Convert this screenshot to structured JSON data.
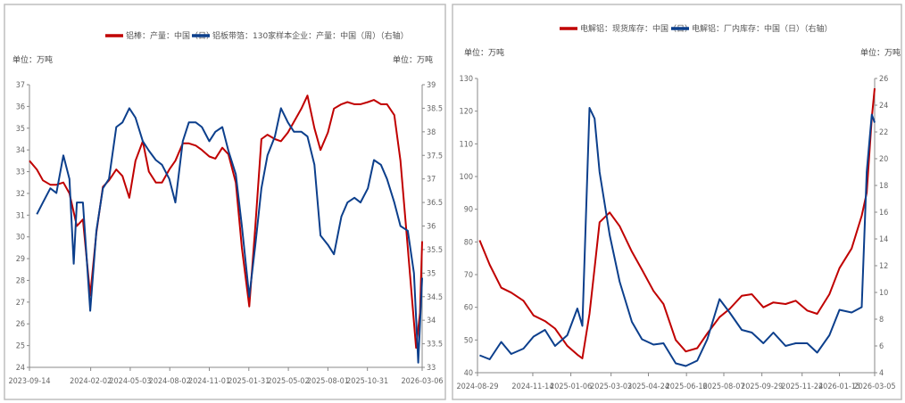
{
  "chart_data": [
    {
      "type": "line",
      "legend_position": "top",
      "grid": false,
      "left_unit": "单位：万吨",
      "right_unit": "单位：万吨",
      "xlim": [
        "2023-09-14",
        "2026-03-06"
      ],
      "x_ticks": [
        "2023-09-14",
        "2024-02-02",
        "2024-05-03",
        "2024-08-02",
        "2024-11-01",
        "2025-01-31",
        "2025-05-02",
        "2025-08-01",
        "2025-10-31",
        "2026-03-06"
      ],
      "ylim_left": [
        24,
        37
      ],
      "y_ticks_left": [
        24,
        25,
        26,
        27,
        28,
        29,
        30,
        31,
        32,
        33,
        34,
        35,
        36,
        37
      ],
      "ylim_right": [
        33,
        39
      ],
      "y_ticks_right": [
        33,
        33.5,
        34,
        34.5,
        35,
        35.5,
        36,
        36.5,
        37,
        37.5,
        38,
        38.5,
        39
      ],
      "series": [
        {
          "name": "铝棒：产量：中国（日）",
          "axis": "left",
          "color": "#c00000",
          "points": [
            [
              "2023-09-14",
              33.5
            ],
            [
              "2023-10-01",
              33.1
            ],
            [
              "2023-10-15",
              32.6
            ],
            [
              "2023-11-01",
              32.4
            ],
            [
              "2023-11-15",
              32.4
            ],
            [
              "2023-12-01",
              32.5
            ],
            [
              "2023-12-15",
              32.0
            ],
            [
              "2024-01-01",
              30.5
            ],
            [
              "2024-01-15",
              30.8
            ],
            [
              "2024-02-01",
              27.3
            ],
            [
              "2024-02-15",
              30.2
            ],
            [
              "2024-03-01",
              32.3
            ],
            [
              "2024-03-15",
              32.6
            ],
            [
              "2024-04-01",
              33.1
            ],
            [
              "2024-04-15",
              32.8
            ],
            [
              "2024-05-01",
              31.8
            ],
            [
              "2024-05-15",
              33.5
            ],
            [
              "2024-06-01",
              34.4
            ],
            [
              "2024-06-15",
              33.0
            ],
            [
              "2024-07-01",
              32.5
            ],
            [
              "2024-07-15",
              32.5
            ],
            [
              "2024-08-01",
              33.1
            ],
            [
              "2024-08-15",
              33.5
            ],
            [
              "2024-09-01",
              34.3
            ],
            [
              "2024-09-15",
              34.3
            ],
            [
              "2024-10-01",
              34.2
            ],
            [
              "2024-10-15",
              34.0
            ],
            [
              "2024-11-01",
              33.7
            ],
            [
              "2024-11-15",
              33.6
            ],
            [
              "2024-12-01",
              34.1
            ],
            [
              "2024-12-15",
              33.8
            ],
            [
              "2025-01-01",
              32.5
            ],
            [
              "2025-01-15",
              29.5
            ],
            [
              "2025-02-01",
              26.8
            ],
            [
              "2025-02-15",
              30.5
            ],
            [
              "2025-03-01",
              34.5
            ],
            [
              "2025-03-15",
              34.7
            ],
            [
              "2025-04-01",
              34.5
            ],
            [
              "2025-04-15",
              34.4
            ],
            [
              "2025-05-01",
              34.8
            ],
            [
              "2025-05-15",
              35.3
            ],
            [
              "2025-06-01",
              35.9
            ],
            [
              "2025-06-15",
              36.5
            ],
            [
              "2025-07-01",
              35.0
            ],
            [
              "2025-07-15",
              34.0
            ],
            [
              "2025-08-01",
              34.8
            ],
            [
              "2025-08-15",
              35.9
            ],
            [
              "2025-09-01",
              36.1
            ],
            [
              "2025-09-15",
              36.2
            ],
            [
              "2025-10-01",
              36.1
            ],
            [
              "2025-10-15",
              36.1
            ],
            [
              "2025-11-01",
              36.2
            ],
            [
              "2025-11-15",
              36.3
            ],
            [
              "2025-12-01",
              36.1
            ],
            [
              "2025-12-15",
              36.1
            ],
            [
              "2026-01-01",
              35.6
            ],
            [
              "2026-01-15",
              33.5
            ],
            [
              "2026-02-01",
              29.5
            ],
            [
              "2026-02-20",
              24.9
            ],
            [
              "2026-03-01",
              26.5
            ],
            [
              "2026-03-06",
              29.8
            ]
          ]
        },
        {
          "name": "铝板带箔：130家样本企业：产量：中国（周）（右轴）",
          "axis": "right",
          "color": "#0c3f8c",
          "points": [
            [
              "2023-10-01",
              36.25
            ],
            [
              "2023-10-15",
              36.5
            ],
            [
              "2023-11-01",
              36.8
            ],
            [
              "2023-11-15",
              36.7
            ],
            [
              "2023-12-01",
              37.5
            ],
            [
              "2023-12-15",
              37.0
            ],
            [
              "2023-12-25",
              35.2
            ],
            [
              "2024-01-01",
              36.5
            ],
            [
              "2024-01-15",
              36.5
            ],
            [
              "2024-02-01",
              34.2
            ],
            [
              "2024-02-15",
              35.9
            ],
            [
              "2024-03-01",
              36.8
            ],
            [
              "2024-03-15",
              37.0
            ],
            [
              "2024-04-01",
              38.1
            ],
            [
              "2024-04-15",
              38.2
            ],
            [
              "2024-05-01",
              38.5
            ],
            [
              "2024-05-15",
              38.3
            ],
            [
              "2024-06-01",
              37.8
            ],
            [
              "2024-06-15",
              37.6
            ],
            [
              "2024-07-01",
              37.4
            ],
            [
              "2024-07-15",
              37.3
            ],
            [
              "2024-08-01",
              37.0
            ],
            [
              "2024-08-15",
              36.5
            ],
            [
              "2024-09-01",
              37.8
            ],
            [
              "2024-09-15",
              38.2
            ],
            [
              "2024-10-01",
              38.2
            ],
            [
              "2024-10-15",
              38.1
            ],
            [
              "2024-11-01",
              37.8
            ],
            [
              "2024-11-15",
              38.0
            ],
            [
              "2024-12-01",
              38.1
            ],
            [
              "2024-12-15",
              37.6
            ],
            [
              "2025-01-01",
              37.1
            ],
            [
              "2025-01-15",
              36.0
            ],
            [
              "2025-02-01",
              34.5
            ],
            [
              "2025-02-15",
              35.6
            ],
            [
              "2025-03-01",
              36.8
            ],
            [
              "2025-03-15",
              37.5
            ],
            [
              "2025-04-01",
              37.9
            ],
            [
              "2025-04-15",
              38.5
            ],
            [
              "2025-05-01",
              38.2
            ],
            [
              "2025-05-15",
              38.0
            ],
            [
              "2025-06-01",
              38.0
            ],
            [
              "2025-06-15",
              37.9
            ],
            [
              "2025-07-01",
              37.3
            ],
            [
              "2025-07-15",
              35.8
            ],
            [
              "2025-08-01",
              35.6
            ],
            [
              "2025-08-15",
              35.4
            ],
            [
              "2025-09-01",
              36.2
            ],
            [
              "2025-09-15",
              36.5
            ],
            [
              "2025-10-01",
              36.6
            ],
            [
              "2025-10-15",
              36.5
            ],
            [
              "2025-11-01",
              36.8
            ],
            [
              "2025-11-15",
              37.4
            ],
            [
              "2025-12-01",
              37.3
            ],
            [
              "2025-12-15",
              37.0
            ],
            [
              "2026-01-01",
              36.5
            ],
            [
              "2026-01-15",
              36.0
            ],
            [
              "2026-02-01",
              35.9
            ],
            [
              "2026-02-15",
              35.0
            ],
            [
              "2026-02-25",
              33.1
            ],
            [
              "2026-03-06",
              34.9
            ]
          ]
        }
      ]
    },
    {
      "type": "line",
      "legend_position": "top",
      "grid": false,
      "left_unit": "单位：万吨",
      "right_unit": "单位：万吨",
      "xlim": [
        "2024-08-29",
        "2026-03-05"
      ],
      "x_ticks": [
        "2024-08-29",
        "2024-11-14",
        "2025-01-06",
        "2025-03-03",
        "2025-04-24",
        "2025-06-16",
        "2025-08-07",
        "2025-09-29",
        "2025-11-24",
        "2026-01-15",
        "2026-03-05"
      ],
      "ylim_left": [
        40,
        130
      ],
      "y_ticks_left": [
        40,
        50,
        60,
        70,
        80,
        90,
        100,
        110,
        120,
        130
      ],
      "ylim_right": [
        4,
        26
      ],
      "y_ticks_right": [
        4,
        6,
        8,
        10,
        12,
        14,
        16,
        18,
        20,
        22,
        24,
        26
      ],
      "series": [
        {
          "name": "电解铝：现货库存：中国（日）",
          "axis": "left",
          "color": "#c00000",
          "points": [
            [
              "2024-09-01",
              80.5
            ],
            [
              "2024-09-15",
              73
            ],
            [
              "2024-10-01",
              66
            ],
            [
              "2024-10-15",
              64.5
            ],
            [
              "2024-11-01",
              62
            ],
            [
              "2024-11-15",
              57.5
            ],
            [
              "2024-12-01",
              55.8
            ],
            [
              "2024-12-15",
              53.5
            ],
            [
              "2025-01-01",
              48.2
            ],
            [
              "2025-01-15",
              45.5
            ],
            [
              "2025-01-22",
              44.4
            ],
            [
              "2025-02-01",
              58
            ],
            [
              "2025-02-08",
              72
            ],
            [
              "2025-02-15",
              86
            ],
            [
              "2025-03-01",
              89
            ],
            [
              "2025-03-15",
              84.8
            ],
            [
              "2025-04-01",
              77
            ],
            [
              "2025-04-15",
              71.5
            ],
            [
              "2025-05-01",
              65
            ],
            [
              "2025-05-15",
              61
            ],
            [
              "2025-06-01",
              50
            ],
            [
              "2025-06-15",
              46.5
            ],
            [
              "2025-07-01",
              47.5
            ],
            [
              "2025-07-15",
              52
            ],
            [
              "2025-08-01",
              57
            ],
            [
              "2025-08-15",
              59.5
            ],
            [
              "2025-09-01",
              63.5
            ],
            [
              "2025-09-15",
              64
            ],
            [
              "2025-10-01",
              60
            ],
            [
              "2025-10-15",
              61.5
            ],
            [
              "2025-11-01",
              61
            ],
            [
              "2025-11-15",
              62
            ],
            [
              "2025-12-01",
              59
            ],
            [
              "2025-12-15",
              58
            ],
            [
              "2026-01-01",
              64
            ],
            [
              "2026-01-15",
              72
            ],
            [
              "2026-02-01",
              78
            ],
            [
              "2026-02-15",
              88
            ],
            [
              "2026-02-22",
              95
            ],
            [
              "2026-03-01",
              118
            ],
            [
              "2026-03-05",
              127
            ]
          ]
        },
        {
          "name": "电解铝：厂内库存：中国（日）（右轴）",
          "axis": "right",
          "color": "#0c3f8c",
          "points": [
            [
              "2024-09-01",
              5.3
            ],
            [
              "2024-09-15",
              5.0
            ],
            [
              "2024-10-01",
              6.3
            ],
            [
              "2024-10-15",
              5.4
            ],
            [
              "2024-11-01",
              5.8
            ],
            [
              "2024-11-15",
              6.7
            ],
            [
              "2024-12-01",
              7.2
            ],
            [
              "2024-12-15",
              6.0
            ],
            [
              "2025-01-01",
              6.8
            ],
            [
              "2025-01-15",
              8.8
            ],
            [
              "2025-01-22",
              7.5
            ],
            [
              "2025-02-01",
              23.8
            ],
            [
              "2025-02-08",
              23.0
            ],
            [
              "2025-02-15",
              19
            ],
            [
              "2025-03-01",
              14.3
            ],
            [
              "2025-03-15",
              10.8
            ],
            [
              "2025-04-01",
              7.8
            ],
            [
              "2025-04-15",
              6.5
            ],
            [
              "2025-05-01",
              6.1
            ],
            [
              "2025-05-15",
              6.2
            ],
            [
              "2025-06-01",
              4.7
            ],
            [
              "2025-06-15",
              4.5
            ],
            [
              "2025-07-01",
              4.9
            ],
            [
              "2025-07-15",
              6.5
            ],
            [
              "2025-08-01",
              9.5
            ],
            [
              "2025-08-15",
              8.5
            ],
            [
              "2025-09-01",
              7.2
            ],
            [
              "2025-09-15",
              7.0
            ],
            [
              "2025-10-01",
              6.2
            ],
            [
              "2025-10-15",
              7.0
            ],
            [
              "2025-11-01",
              6.0
            ],
            [
              "2025-11-15",
              6.2
            ],
            [
              "2025-12-01",
              6.2
            ],
            [
              "2025-12-15",
              5.5
            ],
            [
              "2026-01-01",
              6.8
            ],
            [
              "2026-01-15",
              8.7
            ],
            [
              "2026-02-01",
              8.5
            ],
            [
              "2026-02-15",
              8.9
            ],
            [
              "2026-02-22",
              19
            ],
            [
              "2026-03-01",
              23.3
            ],
            [
              "2026-03-05",
              22.7
            ]
          ]
        }
      ]
    }
  ]
}
